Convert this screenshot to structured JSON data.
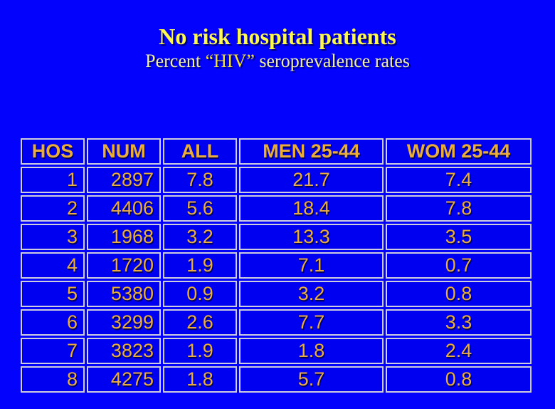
{
  "slide": {
    "title": "No risk hospital patients",
    "subtitle_prefix": "Percent ",
    "subtitle_hiv": "“HIV”",
    "subtitle_suffix": " seroprevalence rates"
  },
  "colors": {
    "background": "#0303FD",
    "cell_background": "#0000F1",
    "cell_border": "#CDCDDE",
    "title_yellow": "#FDF84F",
    "subtitle_pale_yellow": "#F0EEAC",
    "table_gold": "#E8AC41"
  },
  "table": {
    "columns": [
      "HOS",
      "NUM",
      "ALL",
      "MEN 25-44",
      "WOM 25-44"
    ],
    "rows": [
      [
        "1",
        "2897",
        "7.8",
        "21.7",
        "7.4"
      ],
      [
        "2",
        "4406",
        "5.6",
        "18.4",
        "7.8"
      ],
      [
        "3",
        "1968",
        "3.2",
        "13.3",
        "3.5"
      ],
      [
        "4",
        "1720",
        "1.9",
        "7.1",
        "0.7"
      ],
      [
        "5",
        "5380",
        "0.9",
        "3.2",
        "0.8"
      ],
      [
        "6",
        "3299",
        "2.6",
        "7.7",
        "3.3"
      ],
      [
        "7",
        "3823",
        "1.9",
        "1.8",
        "2.4"
      ],
      [
        "8",
        "4275",
        "1.8",
        "5.7",
        "0.8"
      ]
    ],
    "right_aligned_columns": [
      0,
      1
    ]
  }
}
